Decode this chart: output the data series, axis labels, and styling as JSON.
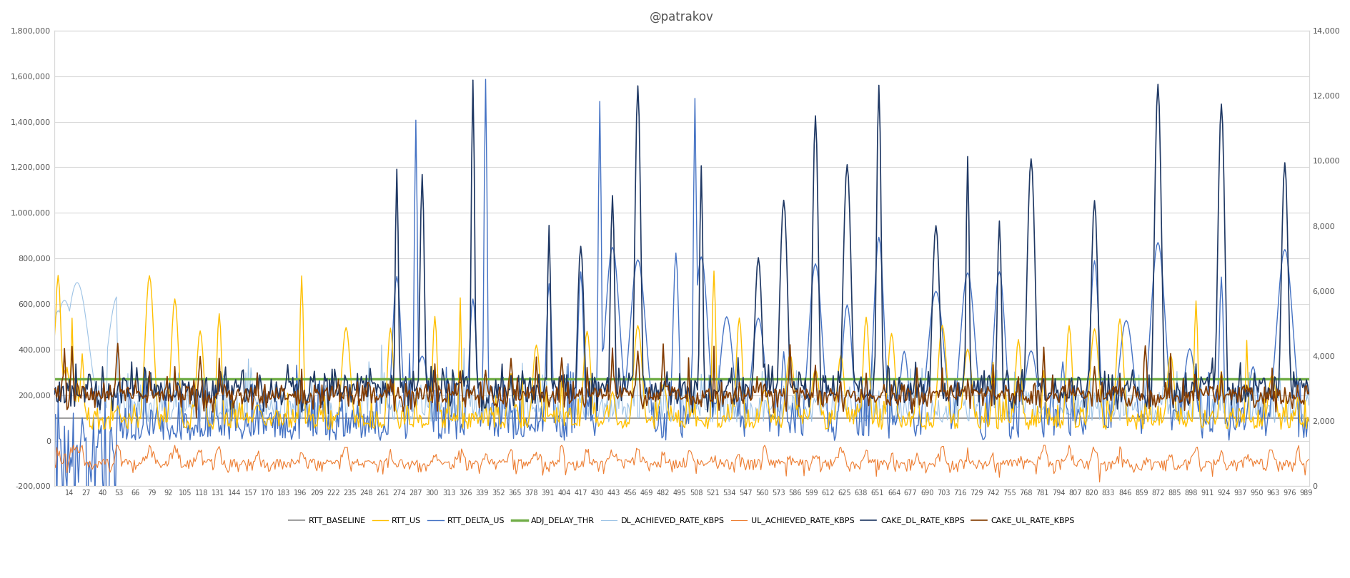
{
  "title": "@patrakov",
  "left_ylim": [
    -200000,
    1800000
  ],
  "right_ylim": [
    0,
    14000
  ],
  "left_yticks": [
    -200000,
    0,
    200000,
    400000,
    600000,
    800000,
    1000000,
    1200000,
    1400000,
    1600000,
    1800000
  ],
  "right_yticks": [
    0,
    2000,
    4000,
    6000,
    8000,
    10000,
    12000,
    14000
  ],
  "series": {
    "RTT_BASELINE": {
      "color": "#a0a0a0",
      "lw": 1.5,
      "zorder": 2
    },
    "RTT_US": {
      "color": "#ffc000",
      "lw": 1.0,
      "zorder": 5
    },
    "RTT_DELTA_US": {
      "color": "#4472c4",
      "lw": 1.0,
      "zorder": 4
    },
    "ADJ_DELAY_THR": {
      "color": "#70ad47",
      "lw": 2.5,
      "zorder": 6
    },
    "DL_ACHIEVED_RATE_KBPS": {
      "color": "#9dc3e6",
      "lw": 0.8,
      "zorder": 3
    },
    "UL_ACHIEVED_RATE_KBPS": {
      "color": "#ed7d31",
      "lw": 0.8,
      "zorder": 7
    },
    "CAKE_DL_RATE_KBPS": {
      "color": "#1f3864",
      "lw": 1.2,
      "zorder": 8
    },
    "CAKE_UL_RATE_KBPS": {
      "color": "#843c00",
      "lw": 1.2,
      "zorder": 9
    }
  },
  "background_color": "#ffffff",
  "grid_color": "#d9d9d9",
  "title_fontsize": 12,
  "tick_fontsize": 8,
  "legend_fontsize": 8
}
